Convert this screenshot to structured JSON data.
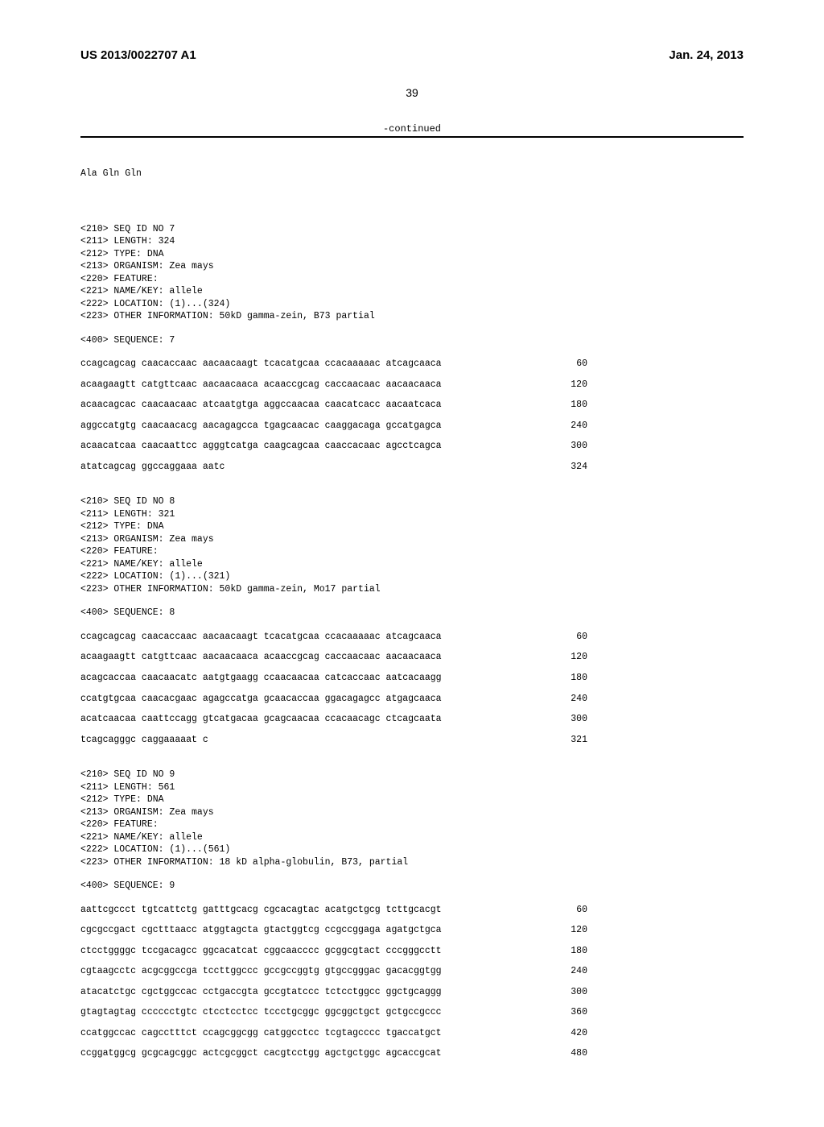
{
  "header": {
    "pub_number": "US 2013/0022707 A1",
    "date": "Jan. 24, 2013"
  },
  "page_number": "39",
  "continued_label": "-continued",
  "residue_line": "Ala Gln Gln",
  "sequences": [
    {
      "meta": [
        "<210> SEQ ID NO 7",
        "<211> LENGTH: 324",
        "<212> TYPE: DNA",
        "<213> ORGANISM: Zea mays",
        "<220> FEATURE:",
        "<221> NAME/KEY: allele",
        "<222> LOCATION: (1)...(324)",
        "<223> OTHER INFORMATION: 50kD gamma-zein, B73 partial"
      ],
      "seq_label": "<400> SEQUENCE: 7",
      "lines": [
        {
          "seq": "ccagcagcag caacaccaac aacaacaagt tcacatgcaa ccacaaaaac atcagcaaca",
          "pos": "60"
        },
        {
          "seq": "acaagaagtt catgttcaac aacaacaaca acaaccgcag caccaacaac aacaacaaca",
          "pos": "120"
        },
        {
          "seq": "acaacagcac caacaacaac atcaatgtga aggccaacaa caacatcacc aacaatcaca",
          "pos": "180"
        },
        {
          "seq": "aggccatgtg caacaacacg aacagagcca tgagcaacac caaggacaga gccatgagca",
          "pos": "240"
        },
        {
          "seq": "acaacatcaa caacaattcc agggtcatga caagcagcaa caaccacaac agcctcagca",
          "pos": "300"
        },
        {
          "seq": "atatcagcag ggccaggaaa aatc",
          "pos": "324"
        }
      ]
    },
    {
      "meta": [
        "<210> SEQ ID NO 8",
        "<211> LENGTH: 321",
        "<212> TYPE: DNA",
        "<213> ORGANISM: Zea mays",
        "<220> FEATURE:",
        "<221> NAME/KEY: allele",
        "<222> LOCATION: (1)...(321)",
        "<223> OTHER INFORMATION: 50kD gamma-zein, Mo17 partial"
      ],
      "seq_label": "<400> SEQUENCE: 8",
      "lines": [
        {
          "seq": "ccagcagcag caacaccaac aacaacaagt tcacatgcaa ccacaaaaac atcagcaaca",
          "pos": "60"
        },
        {
          "seq": "acaagaagtt catgttcaac aacaacaaca acaaccgcag caccaacaac aacaacaaca",
          "pos": "120"
        },
        {
          "seq": "acagcaccaa caacaacatc aatgtgaagg ccaacaacaa catcaccaac aatcacaagg",
          "pos": "180"
        },
        {
          "seq": "ccatgtgcaa caacacgaac agagccatga gcaacaccaa ggacagagcc atgagcaaca",
          "pos": "240"
        },
        {
          "seq": "acatcaacaa caattccagg gtcatgacaa gcagcaacaa ccacaacagc ctcagcaata",
          "pos": "300"
        },
        {
          "seq": "tcagcagggc caggaaaaat c",
          "pos": "321"
        }
      ]
    },
    {
      "meta": [
        "<210> SEQ ID NO 9",
        "<211> LENGTH: 561",
        "<212> TYPE: DNA",
        "<213> ORGANISM: Zea mays",
        "<220> FEATURE:",
        "<221> NAME/KEY: allele",
        "<222> LOCATION: (1)...(561)",
        "<223> OTHER INFORMATION: 18 kD alpha-globulin, B73, partial"
      ],
      "seq_label": "<400> SEQUENCE: 9",
      "lines": [
        {
          "seq": "aattcgccct tgtcattctg gatttgcacg cgcacagtac acatgctgcg tcttgcacgt",
          "pos": "60"
        },
        {
          "seq": "cgcgccgact cgctttaacc atggtagcta gtactggtcg ccgccggaga agatgctgca",
          "pos": "120"
        },
        {
          "seq": "ctcctggggc tccgacagcc ggcacatcat cggcaacccc gcggcgtact cccgggcctt",
          "pos": "180"
        },
        {
          "seq": "cgtaagcctc acgcggccga tccttggccc gccgccggtg gtgccgggac gacacggtgg",
          "pos": "240"
        },
        {
          "seq": "atacatctgc cgctggccac cctgaccgta gccgtatccc tctcctggcc ggctgcaggg",
          "pos": "300"
        },
        {
          "seq": "gtagtagtag cccccctgtc ctcctcctcc tccctgcggc ggcggctgct gctgccgccc",
          "pos": "360"
        },
        {
          "seq": "ccatggccac cagcctttct ccagcggcgg catggcctcc tcgtagcccc tgaccatgct",
          "pos": "420"
        },
        {
          "seq": "ccggatggcg gcgcagcggc actcgcggct cacgtcctgg agctgctggc agcaccgcat",
          "pos": "480"
        }
      ]
    }
  ]
}
